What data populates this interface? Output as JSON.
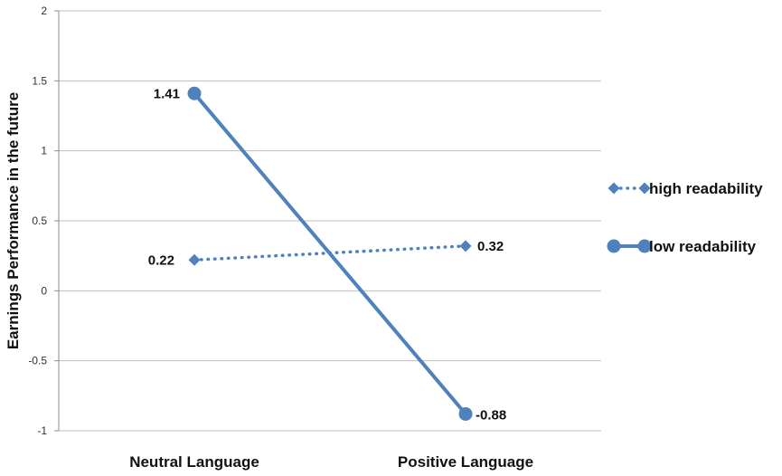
{
  "chart_data": {
    "type": "line",
    "categories": [
      "Neutral Language",
      "Positive Language"
    ],
    "series": [
      {
        "name": "high readability",
        "values": [
          0.22,
          0.32
        ],
        "labels": [
          "0.22",
          "0.32"
        ],
        "style": "dotted",
        "marker": "diamond",
        "color": "#4F81BD"
      },
      {
        "name": "low readability",
        "values": [
          1.41,
          -0.88
        ],
        "labels": [
          "1.41",
          "-0.88"
        ],
        "style": "solid",
        "marker": "circle",
        "color": "#4F81BD"
      }
    ],
    "ylabel": "Earnings Performance in the future",
    "xlabel": "",
    "ylim": [
      -1,
      2
    ],
    "yticks": [
      2,
      1.5,
      1,
      0.5,
      0,
      -0.5,
      -1
    ],
    "ytick_labels": [
      "2",
      "1.5",
      "1",
      "0.5",
      "0",
      "-0.5",
      "-1"
    ],
    "grid": true,
    "legend_position": "right",
    "colors": {
      "series": "#4F81BD",
      "grid": "#BFBFBF",
      "axis": "#8C8C8C"
    }
  }
}
